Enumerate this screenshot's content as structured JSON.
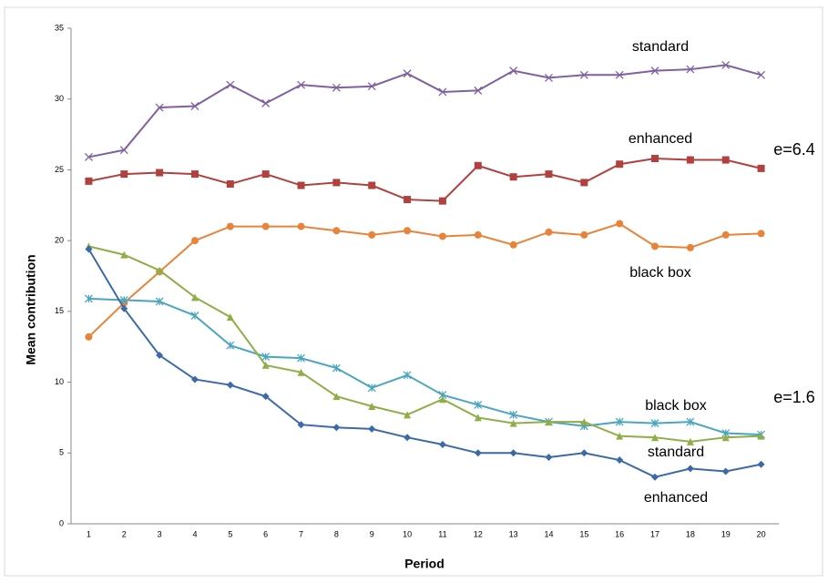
{
  "chart_data": {
    "type": "line",
    "y_label": "Mean contribution",
    "x_label": "Period",
    "categories": [
      "1",
      "2",
      "3",
      "4",
      "5",
      "6",
      "7",
      "8",
      "9",
      "10",
      "11",
      "12",
      "13",
      "14",
      "15",
      "16",
      "17",
      "18",
      "19",
      "20"
    ],
    "ylim": [
      0,
      35
    ],
    "yticks": [
      0,
      5,
      10,
      15,
      20,
      25,
      30,
      35
    ],
    "annotations": [
      "e=6.4",
      "e=1.6"
    ],
    "series": [
      {
        "name": "standard",
        "color": "#7f60a0",
        "marker": "x",
        "values": [
          25.9,
          26.4,
          29.4,
          29.5,
          31.0,
          29.7,
          31.0,
          30.8,
          30.9,
          31.8,
          30.5,
          30.6,
          32.0,
          31.5,
          31.7,
          31.7,
          32.0,
          32.1,
          32.4,
          31.7
        ]
      },
      {
        "name": "enhanced",
        "color": "#b0413e",
        "marker": "square",
        "values": [
          24.2,
          24.7,
          24.8,
          24.7,
          24.0,
          24.7,
          23.9,
          24.1,
          23.9,
          22.9,
          22.8,
          25.3,
          24.5,
          24.7,
          24.1,
          25.4,
          25.8,
          25.7,
          25.7,
          25.1
        ]
      },
      {
        "name": "black box",
        "color": "#e8843a",
        "marker": "circle",
        "values": [
          13.2,
          15.6,
          17.8,
          20.0,
          21.0,
          21.0,
          21.0,
          20.7,
          20.4,
          20.7,
          20.3,
          20.4,
          19.7,
          20.6,
          20.4,
          21.2,
          19.6,
          19.5,
          20.4,
          20.5
        ]
      },
      {
        "name": "black box",
        "color": "#4aa5c0",
        "marker": "star",
        "values": [
          15.9,
          15.8,
          15.7,
          14.7,
          12.6,
          11.8,
          11.7,
          11.0,
          9.6,
          10.5,
          9.1,
          8.4,
          7.7,
          7.2,
          6.9,
          7.2,
          7.1,
          7.2,
          6.4,
          6.3
        ]
      },
      {
        "name": "standard",
        "color": "#8fae47",
        "marker": "triangle",
        "values": [
          19.6,
          19.0,
          17.9,
          16.0,
          14.6,
          11.2,
          10.7,
          9.0,
          8.3,
          7.7,
          8.8,
          7.5,
          7.1,
          7.2,
          7.2,
          6.2,
          6.1,
          5.8,
          6.1,
          6.2
        ]
      },
      {
        "name": "enhanced",
        "color": "#3c6aa8",
        "marker": "diamond",
        "values": [
          19.4,
          15.2,
          11.9,
          10.2,
          9.8,
          9.0,
          7.0,
          6.8,
          6.7,
          6.1,
          5.6,
          5.0,
          5.0,
          4.7,
          5.0,
          4.5,
          3.3,
          3.9,
          3.7,
          4.2
        ]
      }
    ]
  }
}
